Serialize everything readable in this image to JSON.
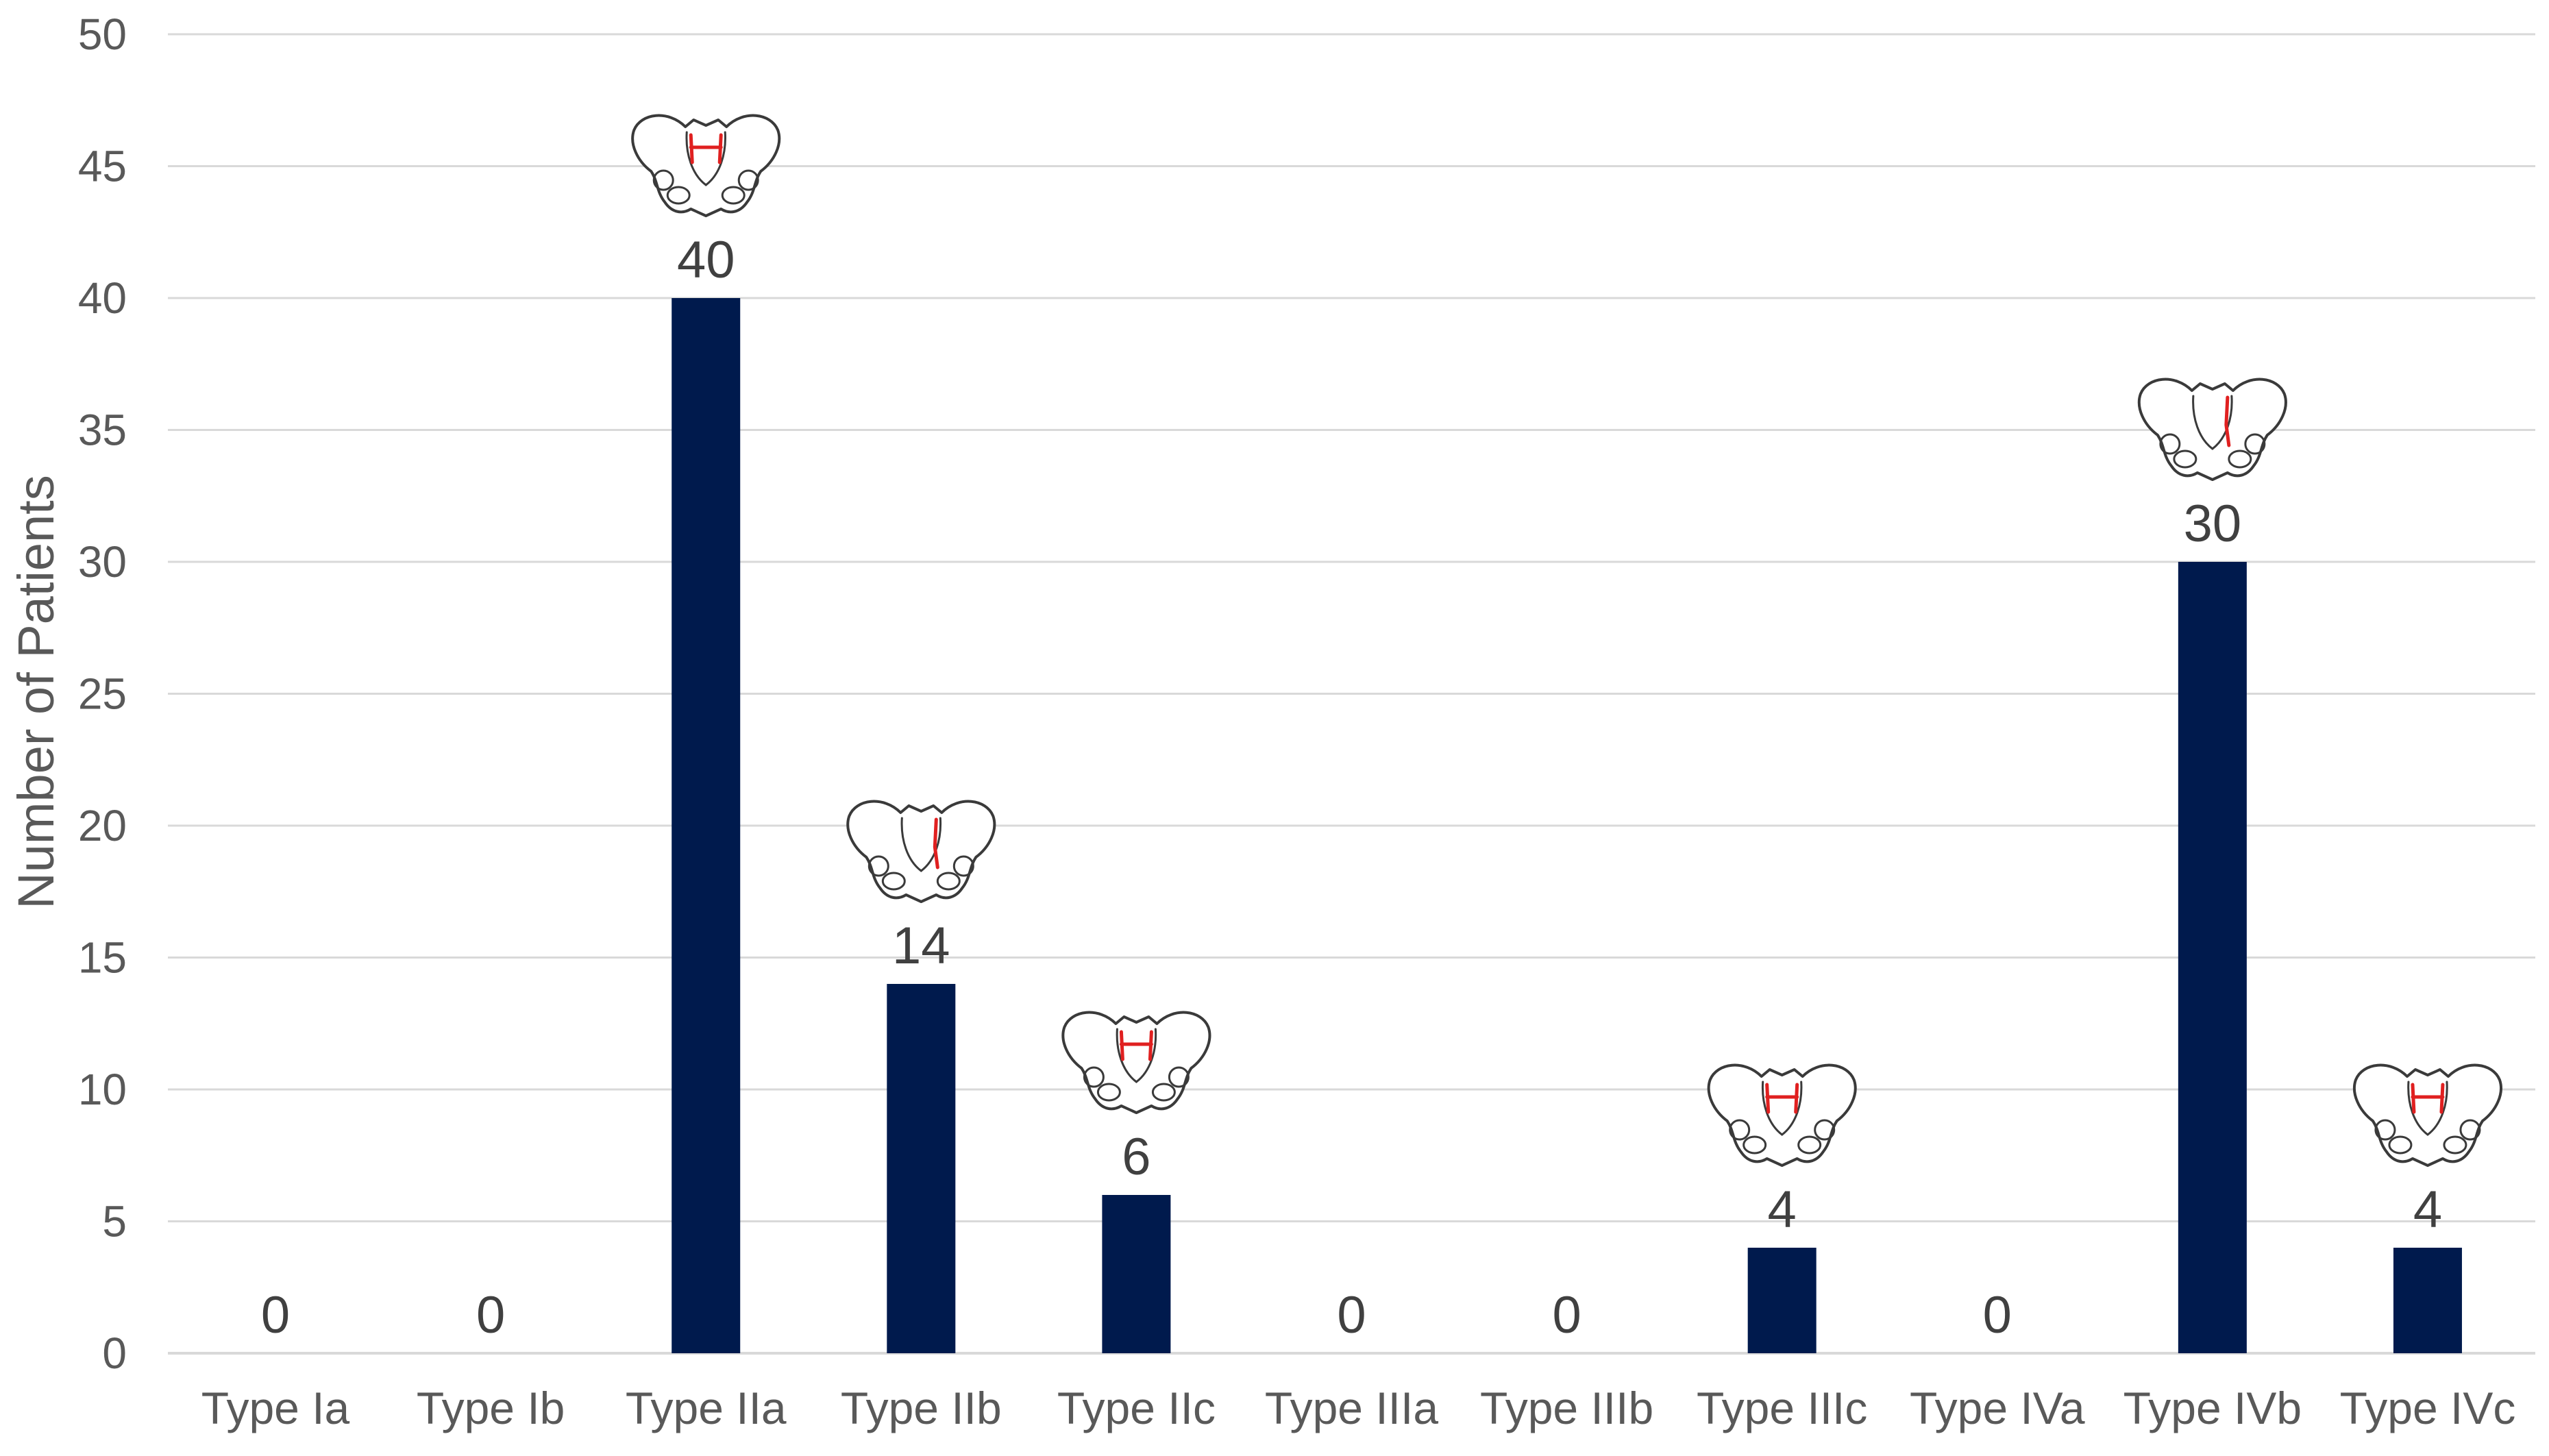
{
  "chart_data": {
    "type": "bar",
    "categories": [
      "Type Ia",
      "Type Ib",
      "Type IIa",
      "Type IIb",
      "Type IIc",
      "Type IIIa",
      "Type IIIb",
      "Type IIIc",
      "Type IVa",
      "Type IVb",
      "Type IVc"
    ],
    "values": [
      0,
      0,
      40,
      14,
      6,
      0,
      0,
      4,
      0,
      30,
      4
    ],
    "title": "",
    "xlabel": "",
    "ylabel": "Number of Patients",
    "ylim": [
      0,
      50
    ],
    "yticks": [
      0,
      5,
      10,
      15,
      20,
      25,
      30,
      35,
      40,
      45,
      50
    ],
    "grid": true,
    "legend": "none",
    "data_labels": true,
    "bar_color": "#001a4d",
    "annotation_icons": {
      "name": "pelvis-icon",
      "categories": [
        "Type IIa",
        "Type IIb",
        "Type IIc",
        "Type IIIc",
        "Type IVb",
        "Type IVc"
      ]
    }
  }
}
